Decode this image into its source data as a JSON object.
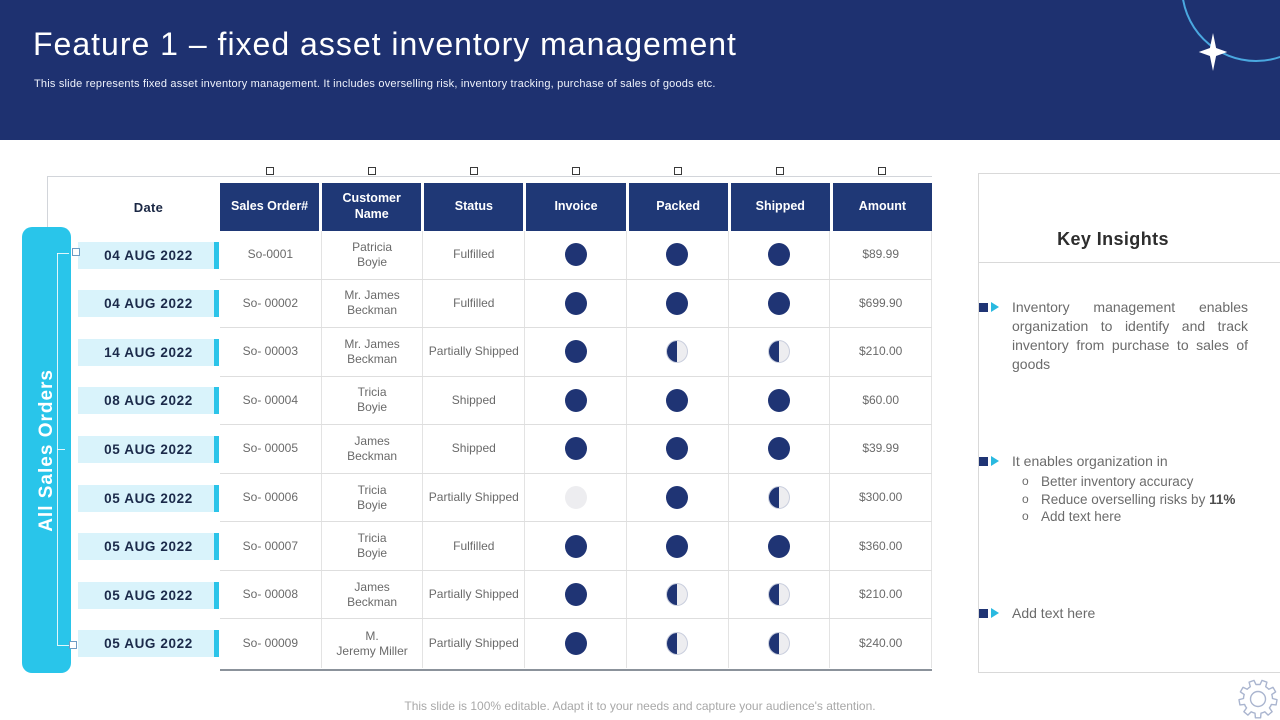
{
  "slide": {
    "title": "Feature 1 – fixed asset inventory management",
    "subtitle": "This slide represents fixed asset inventory management. It includes overselling risk, inventory tracking, purchase of sales of goods etc.",
    "footer": "This slide is 100% editable. Adapt it to your needs and capture your audience's attention."
  },
  "left_tab": {
    "label": "All Sales Orders"
  },
  "table": {
    "date_header": "Date",
    "columns": [
      "Sales Order#",
      "Customer Name",
      "Status",
      "Invoice",
      "Packed",
      "Shipped",
      "Amount"
    ],
    "rows": [
      {
        "date": "04 AUG 2022",
        "order": "So-0001",
        "customer_line1": "Patricia",
        "customer_line2": "Boyie",
        "status": "Fulfilled",
        "invoice": "full",
        "packed": "full",
        "shipped": "full",
        "amount": "$89.99"
      },
      {
        "date": "04 AUG 2022",
        "order": "So- 00002",
        "customer_line1": "Mr. James",
        "customer_line2": "Beckman",
        "status": "Fulfilled",
        "invoice": "full",
        "packed": "full",
        "shipped": "full",
        "amount": "$699.90"
      },
      {
        "date": "14 AUG 2022",
        "order": "So- 00003",
        "customer_line1": "Mr. James",
        "customer_line2": "Beckman",
        "status": "Partially Shipped",
        "invoice": "full",
        "packed": "half",
        "shipped": "half",
        "amount": "$210.00"
      },
      {
        "date": "08 AUG 2022",
        "order": "So- 00004",
        "customer_line1": "Tricia",
        "customer_line2": "Boyie",
        "status": "Shipped",
        "invoice": "full",
        "packed": "full",
        "shipped": "full",
        "amount": "$60.00"
      },
      {
        "date": "05 AUG 2022",
        "order": "So- 00005",
        "customer_line1": "James",
        "customer_line2": "Beckman",
        "status": "Shipped",
        "invoice": "full",
        "packed": "full",
        "shipped": "full",
        "amount": "$39.99"
      },
      {
        "date": "05 AUG 2022",
        "order": "So- 00006",
        "customer_line1": "Tricia",
        "customer_line2": "Boyie",
        "status": "Partially Shipped",
        "invoice": "none",
        "packed": "full",
        "shipped": "half",
        "amount": "$300.00"
      },
      {
        "date": "05 AUG 2022",
        "order": "So- 00007",
        "customer_line1": "Tricia",
        "customer_line2": "Boyie",
        "status": "Fulfilled",
        "invoice": "full",
        "packed": "full",
        "shipped": "full",
        "amount": "$360.00"
      },
      {
        "date": "05 AUG 2022",
        "order": "So- 00008",
        "customer_line1": "James",
        "customer_line2": "Beckman",
        "status": "Partially Shipped",
        "invoice": "full",
        "packed": "half",
        "shipped": "half",
        "amount": "$210.00"
      },
      {
        "date": "05 AUG 2022",
        "order": "So- 00009",
        "customer_line1": "M.",
        "customer_line2": "Jeremy Miller",
        "status": "Partially Shipped",
        "invoice": "full",
        "packed": "half",
        "shipped": "half",
        "amount": "$240.00"
      }
    ]
  },
  "insights": {
    "title": "Key Insights",
    "bullet1": "Inventory management enables organization to identify and track inventory from purchase to sales of goods",
    "bullet2": "It enables organization in",
    "bullet2_sub": [
      {
        "text": "Better inventory accuracy",
        "bold": ""
      },
      {
        "text": "Reduce overselling risks by ",
        "bold": "11%"
      },
      {
        "text": "Add text here",
        "bold": ""
      }
    ],
    "bullet3": "Add text here"
  },
  "colors": {
    "band_navy": "#1e3170",
    "table_header_navy": "#1f3876",
    "dot_navy": "#1f3474",
    "accent_cyan": "#29c5ea",
    "date_chip_bg": "#d9f3fb",
    "arc_blue": "#4aa8e0"
  }
}
